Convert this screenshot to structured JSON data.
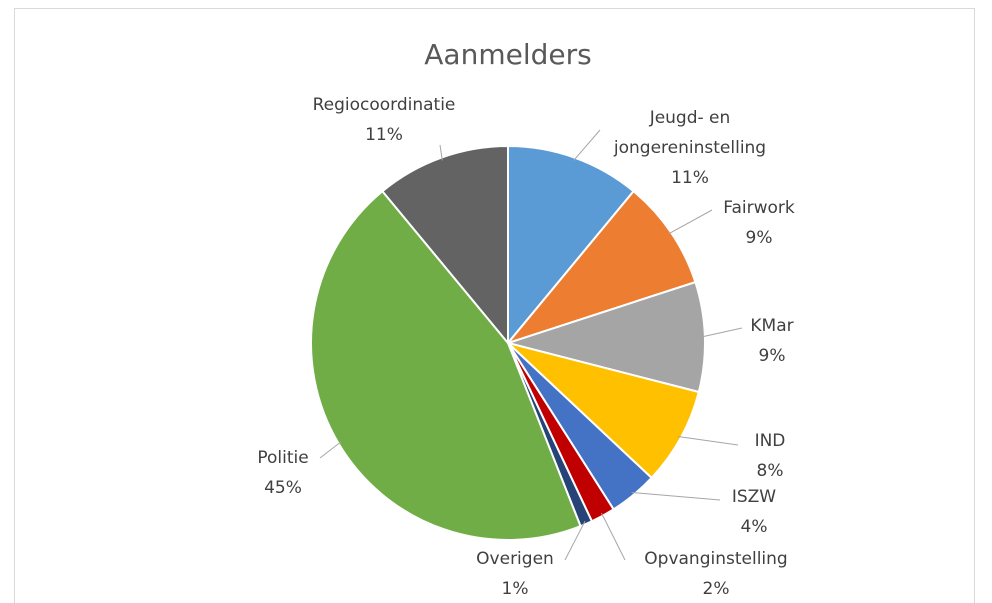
{
  "chart_data": {
    "type": "pie",
    "title": "Aanmelders",
    "categories": [
      "Jeugd- en jongereninstelling",
      "Fairwork",
      "KMar",
      "IND",
      "ISZW",
      "Opvanginstelling",
      "Overigen",
      "Politie",
      "Regiocoordinatie"
    ],
    "values": [
      11,
      9,
      9,
      8,
      4,
      2,
      1,
      45,
      11
    ],
    "value_labels": [
      "11%",
      "9%",
      "9%",
      "8%",
      "4%",
      "2%",
      "1%",
      "45%",
      "11%"
    ],
    "colors": [
      "#5b9bd5",
      "#ed7d31",
      "#a5a5a5",
      "#ffc000",
      "#4472c4",
      "#c00000",
      "#264478",
      "#70ad47",
      "#636363"
    ]
  }
}
